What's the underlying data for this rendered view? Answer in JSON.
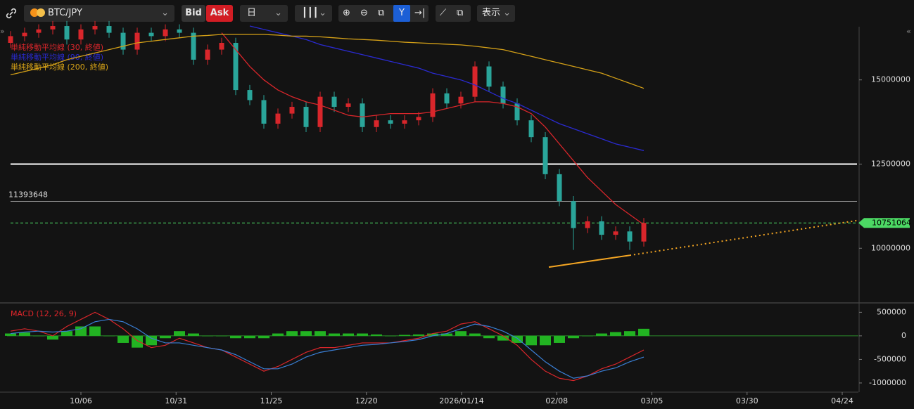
{
  "toolbar": {
    "symbol": "BTC/JPY",
    "bid": "Bid",
    "ask": "Ask",
    "interval": "日",
    "display": "表示"
  },
  "chart_data": [
    {
      "type": "candlestick",
      "up_color": "#d9262b",
      "down_color": "#2aa59a",
      "open": [
        16100000,
        16300000,
        16400000,
        16500000,
        16600000,
        16200000,
        16500000,
        16600000,
        16400000,
        15900000,
        16400000,
        16300000,
        16500000,
        16400000,
        15600000,
        15900000,
        16100000,
        14700000,
        14400000,
        13700000,
        14000000,
        14200000,
        13600000,
        14500000,
        14200000,
        14300000,
        13600000,
        13800000,
        13700000,
        13800000,
        13900000,
        14600000,
        14300000,
        14500000,
        15400000,
        14800000,
        14300000,
        13800000,
        13300000,
        12200000,
        11400000,
        10600000,
        10800000,
        10400000,
        10500000,
        10200000
      ],
      "high": [
        16450000,
        16550000,
        16650000,
        16750000,
        16750000,
        16650000,
        16750000,
        16750000,
        16550000,
        16550000,
        16550000,
        16650000,
        16650000,
        16550000,
        16050000,
        16250000,
        16250000,
        14850000,
        14550000,
        14150000,
        14350000,
        14350000,
        14650000,
        14650000,
        14450000,
        14450000,
        13950000,
        13950000,
        13950000,
        14050000,
        14750000,
        14750000,
        14650000,
        15550000,
        15550000,
        14950000,
        14450000,
        13950000,
        13450000,
        12350000,
        11550000,
        10950000,
        10950000,
        10650000,
        10650000,
        10900000
      ],
      "low": [
        15950000,
        16150000,
        16250000,
        16350000,
        16050000,
        16050000,
        16350000,
        16250000,
        15750000,
        15750000,
        16150000,
        16150000,
        16250000,
        15450000,
        15450000,
        15750000,
        14550000,
        14250000,
        13550000,
        13550000,
        13850000,
        13450000,
        13450000,
        14050000,
        14050000,
        13450000,
        13450000,
        13550000,
        13550000,
        13650000,
        13750000,
        14150000,
        14150000,
        14350000,
        14650000,
        14150000,
        13650000,
        13150000,
        12050000,
        11250000,
        9950000,
        10450000,
        10250000,
        10250000,
        9950000,
        10050000
      ],
      "close": [
        16300000,
        16400000,
        16500000,
        16600000,
        16200000,
        16500000,
        16600000,
        16400000,
        15900000,
        16400000,
        16300000,
        16500000,
        16400000,
        15600000,
        15900000,
        16100000,
        14700000,
        14400000,
        13700000,
        14000000,
        14200000,
        13600000,
        14500000,
        14200000,
        14300000,
        13600000,
        13800000,
        13700000,
        13800000,
        13900000,
        14600000,
        14300000,
        14500000,
        15400000,
        14800000,
        14300000,
        13800000,
        13300000,
        12200000,
        11400000,
        10600000,
        10800000,
        10400000,
        10500000,
        10200000,
        10751064
      ],
      "series": [
        {
          "name": "単純移動平均線 (30, 終値)",
          "color": "#d9262b",
          "values": [
            null,
            null,
            null,
            null,
            null,
            null,
            null,
            null,
            null,
            null,
            null,
            null,
            null,
            null,
            null,
            16400000,
            15900000,
            15400000,
            15000000,
            14700000,
            14500000,
            14350000,
            14250000,
            14100000,
            13950000,
            13900000,
            13950000,
            14000000,
            14000000,
            14000000,
            14050000,
            14150000,
            14250000,
            14350000,
            14350000,
            14300000,
            14200000,
            14000000,
            13600000,
            13100000,
            12600000,
            12100000,
            11700000,
            11300000,
            11000000,
            10700000
          ]
        },
        {
          "name": "単純移動平均線 (90, 終値)",
          "color": "#2a2ad0",
          "values": [
            null,
            null,
            null,
            null,
            null,
            null,
            null,
            null,
            null,
            null,
            null,
            null,
            null,
            null,
            null,
            null,
            null,
            16600000,
            16500000,
            16400000,
            16300000,
            16200000,
            16050000,
            15950000,
            15850000,
            15750000,
            15650000,
            15550000,
            15450000,
            15350000,
            15200000,
            15100000,
            15000000,
            14850000,
            14650000,
            14450000,
            14300000,
            14100000,
            13900000,
            13700000,
            13550000,
            13400000,
            13250000,
            13100000,
            13000000,
            12900000
          ]
        },
        {
          "name": "単純移動平均線 (200, 終値)",
          "color": "#d4a017",
          "values": [
            15150000,
            15250000,
            15350000,
            15450000,
            15600000,
            15700000,
            15800000,
            15900000,
            16000000,
            16100000,
            16150000,
            16200000,
            16250000,
            16300000,
            16320000,
            16350000,
            16350000,
            16350000,
            16350000,
            16330000,
            16300000,
            16300000,
            16280000,
            16250000,
            16220000,
            16200000,
            16180000,
            16150000,
            16120000,
            16100000,
            16080000,
            16060000,
            16040000,
            16000000,
            15950000,
            15900000,
            15800000,
            15700000,
            15600000,
            15500000,
            15400000,
            15300000,
            15200000,
            15050000,
            14900000,
            14750000
          ]
        }
      ],
      "hlines": [
        {
          "value": 12500000,
          "color": "#ffffff"
        },
        {
          "value": 11393648,
          "color": "#9a9a9a"
        },
        {
          "value": 10751064,
          "color": "#4cd964",
          "style": "dashed"
        }
      ],
      "trendline": {
        "color": "#f5a623",
        "values": [
          9440000,
          9790000,
          10830000
        ]
      },
      "ylim": [
        8440000,
        16580000
      ],
      "yticks": [
        15000000,
        12500000,
        10000000
      ],
      "xaxis_labels": [
        "10/06",
        "10/31",
        "11/25",
        "12/20",
        "2026/01/14",
        "02/08",
        "03/05",
        "03/30",
        "04/24"
      ]
    },
    {
      "type": "macd",
      "title": "MACD (12, 26, 9)",
      "series": [
        {
          "color": "#d9262b",
          "values": [
            100000,
            150000,
            100000,
            0,
            200000,
            350000,
            500000,
            350000,
            150000,
            -100000,
            -250000,
            -200000,
            -50000,
            -150000,
            -250000,
            -300000,
            -450000,
            -600000,
            -750000,
            -650000,
            -500000,
            -350000,
            -250000,
            -250000,
            -200000,
            -150000,
            -150000,
            -150000,
            -100000,
            -50000,
            50000,
            100000,
            250000,
            300000,
            150000,
            0,
            -200000,
            -500000,
            -750000,
            -900000,
            -950000,
            -850000,
            -700000,
            -600000,
            -450000,
            -300000
          ]
        },
        {
          "color": "#3a7fd5",
          "values": [
            50000,
            80000,
            100000,
            80000,
            100000,
            150000,
            300000,
            350000,
            300000,
            150000,
            -50000,
            -150000,
            -150000,
            -200000,
            -250000,
            -300000,
            -400000,
            -550000,
            -700000,
            -700000,
            -600000,
            -450000,
            -350000,
            -300000,
            -250000,
            -200000,
            -180000,
            -150000,
            -120000,
            -80000,
            0,
            50000,
            150000,
            250000,
            200000,
            100000,
            -50000,
            -300000,
            -550000,
            -750000,
            -900000,
            -850000,
            -750000,
            -680000,
            -550000,
            -450000
          ]
        }
      ],
      "histogram": {
        "color": "#22b322",
        "values": [
          50000,
          70000,
          0,
          -80000,
          100000,
          200000,
          200000,
          0,
          -150000,
          -250000,
          -200000,
          -50000,
          100000,
          50000,
          0,
          0,
          -50000,
          -50000,
          -50000,
          50000,
          100000,
          100000,
          100000,
          50000,
          50000,
          50000,
          30000,
          0,
          20000,
          30000,
          50000,
          50000,
          100000,
          50000,
          -50000,
          -100000,
          -150000,
          -200000,
          -200000,
          -150000,
          -50000,
          0,
          50000,
          80000,
          100000,
          150000
        ]
      },
      "ylim": [
        -1150000,
        610000
      ],
      "yticks": [
        500000,
        0,
        -500000,
        -1000000
      ]
    }
  ]
}
